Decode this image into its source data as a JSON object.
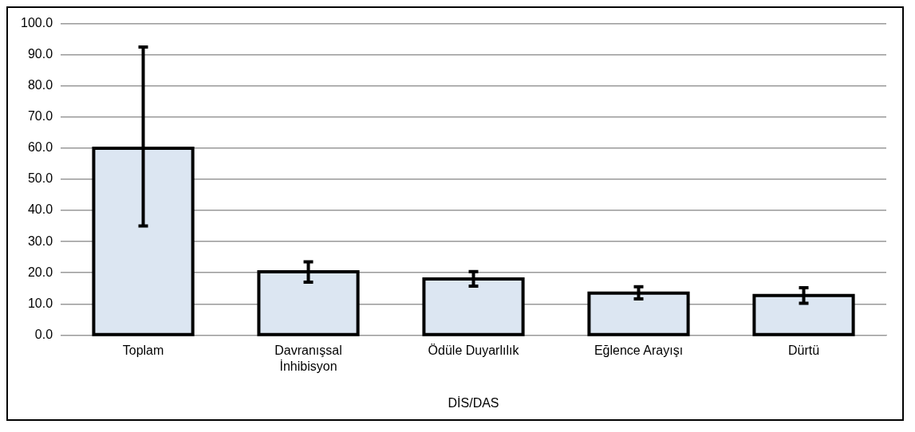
{
  "chart_data": {
    "type": "bar",
    "xlabel": "DİS/DAS",
    "categories": [
      "Toplam",
      "Davranışsal İnhibisyon",
      "Ödüle Duyarlılık",
      "Eğlence Arayışı",
      "Dürtü"
    ],
    "values": [
      60.0,
      20.3,
      18.0,
      13.5,
      12.7
    ],
    "errors": [
      [
        35,
        92.5
      ],
      [
        17,
        23.5
      ],
      [
        15.7,
        20.4
      ],
      [
        11.6,
        15.5
      ],
      [
        10.2,
        15.2
      ]
    ],
    "color": "#dce6f2",
    "ylim": [
      0,
      100
    ],
    "yticks": [
      {
        "value": 0,
        "label": "0.0"
      },
      {
        "value": 10,
        "label": "10.0"
      },
      {
        "value": 20,
        "label": "20.0"
      },
      {
        "value": 30,
        "label": "30.0"
      },
      {
        "value": 40,
        "label": "40.0"
      },
      {
        "value": 50,
        "label": "50.0"
      },
      {
        "value": 60,
        "label": "60.0"
      },
      {
        "value": 70,
        "label": "70.0"
      },
      {
        "value": 80,
        "label": "80.0"
      },
      {
        "value": 90,
        "label": "90.0"
      },
      {
        "value": 100,
        "label": "100.0"
      }
    ],
    "grid": "y",
    "legend": false
  }
}
